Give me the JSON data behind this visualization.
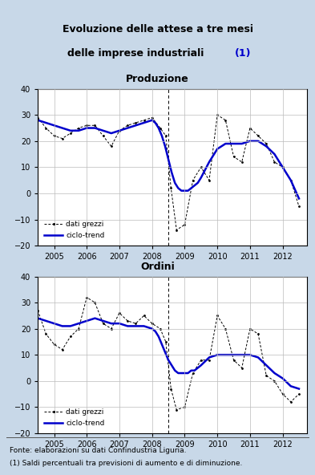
{
  "title_line1": "Evoluzione delle attese a tre mesi",
  "title_line2_normal": "delle imprese industriali ",
  "title_line2_blue": "(1)",
  "bg_color": "#c8d8e8",
  "plot_bg": "#ffffff",
  "chart1_title": "Produzione",
  "chart2_title": "Ordini",
  "footer1": "Fonte: elaborazioni su dati Confindustria Liguria.",
  "footer2": "(1) Saldi percentuali tra previsioni di aumento e di diminuzione.",
  "ylim": [
    -20,
    40
  ],
  "yticks": [
    -20,
    -10,
    0,
    10,
    20,
    30,
    40
  ],
  "xstart": 2004.5,
  "xend": 2012.75,
  "xticks": [
    2005,
    2006,
    2007,
    2008,
    2009,
    2010,
    2011,
    2012
  ],
  "prod_raw_x": [
    2004.5,
    2004.75,
    2005.0,
    2005.25,
    2005.5,
    2005.75,
    2006.0,
    2006.25,
    2006.5,
    2006.75,
    2007.0,
    2007.25,
    2007.5,
    2007.75,
    2008.0,
    2008.25,
    2008.42,
    2008.58,
    2008.75,
    2009.0,
    2009.25,
    2009.5,
    2009.75,
    2010.0,
    2010.25,
    2010.5,
    2010.75,
    2011.0,
    2011.25,
    2011.5,
    2011.75,
    2012.0,
    2012.25,
    2012.5
  ],
  "prod_raw_y": [
    29,
    25,
    22,
    21,
    23,
    25,
    26,
    26,
    22,
    18,
    24,
    26,
    27,
    28,
    29,
    25,
    22,
    2,
    -14,
    -12,
    5,
    10,
    5,
    30,
    28,
    14,
    12,
    25,
    22,
    19,
    12,
    10,
    5,
    -5
  ],
  "prod_trend_x": [
    2004.5,
    2004.75,
    2005.0,
    2005.25,
    2005.5,
    2005.75,
    2006.0,
    2006.25,
    2006.5,
    2006.75,
    2007.0,
    2007.25,
    2007.5,
    2007.75,
    2008.0,
    2008.1,
    2008.2,
    2008.3,
    2008.4,
    2008.5,
    2008.6,
    2008.7,
    2008.8,
    2008.9,
    2009.0,
    2009.1,
    2009.2,
    2009.3,
    2009.4,
    2009.5,
    2009.75,
    2010.0,
    2010.25,
    2010.5,
    2010.75,
    2011.0,
    2011.1,
    2011.25,
    2011.5,
    2011.75,
    2012.0,
    2012.25,
    2012.5
  ],
  "prod_trend_y": [
    28,
    27,
    26,
    25,
    24,
    24,
    25,
    25,
    24,
    23,
    24,
    25,
    26,
    27,
    28,
    27,
    25,
    22,
    18,
    13,
    8,
    4,
    2,
    1,
    1,
    1,
    2,
    3,
    4,
    6,
    12,
    17,
    19,
    19,
    19,
    20,
    20,
    20,
    18,
    15,
    10,
    5,
    -2
  ],
  "ord_raw_x": [
    2004.5,
    2004.75,
    2005.0,
    2005.25,
    2005.5,
    2005.75,
    2006.0,
    2006.25,
    2006.5,
    2006.75,
    2007.0,
    2007.25,
    2007.5,
    2007.75,
    2008.0,
    2008.25,
    2008.42,
    2008.58,
    2008.75,
    2009.0,
    2009.25,
    2009.5,
    2009.75,
    2010.0,
    2010.25,
    2010.5,
    2010.75,
    2011.0,
    2011.25,
    2011.5,
    2011.75,
    2012.0,
    2012.25,
    2012.5
  ],
  "ord_raw_y": [
    27,
    18,
    14,
    12,
    17,
    20,
    32,
    30,
    22,
    20,
    26,
    23,
    22,
    25,
    22,
    20,
    15,
    -3,
    -11,
    -10,
    3,
    8,
    8,
    25,
    20,
    8,
    5,
    20,
    18,
    2,
    0,
    -5,
    -8,
    -5
  ],
  "ord_trend_x": [
    2004.5,
    2004.75,
    2005.0,
    2005.25,
    2005.5,
    2005.75,
    2006.0,
    2006.25,
    2006.5,
    2006.75,
    2007.0,
    2007.25,
    2007.5,
    2007.75,
    2008.0,
    2008.1,
    2008.2,
    2008.3,
    2008.4,
    2008.5,
    2008.6,
    2008.7,
    2008.8,
    2008.9,
    2009.0,
    2009.1,
    2009.2,
    2009.3,
    2009.5,
    2009.75,
    2010.0,
    2010.25,
    2010.5,
    2010.75,
    2011.0,
    2011.25,
    2011.5,
    2011.75,
    2012.0,
    2012.25,
    2012.5
  ],
  "ord_trend_y": [
    24,
    23,
    22,
    21,
    21,
    22,
    23,
    24,
    23,
    22,
    22,
    21,
    21,
    21,
    20,
    19,
    17,
    14,
    11,
    8,
    6,
    4,
    3,
    3,
    3,
    3,
    4,
    4,
    6,
    9,
    10,
    10,
    10,
    10,
    10,
    9,
    6,
    3,
    1,
    -2,
    -3
  ],
  "line_color": "#0000cc",
  "raw_color": "#000000",
  "vline_x": 2008.5,
  "vline_color": "#000000",
  "grid_color": "#bbbbbb",
  "legend_raw": "dati grezzi",
  "legend_trend": "ciclo-trend"
}
